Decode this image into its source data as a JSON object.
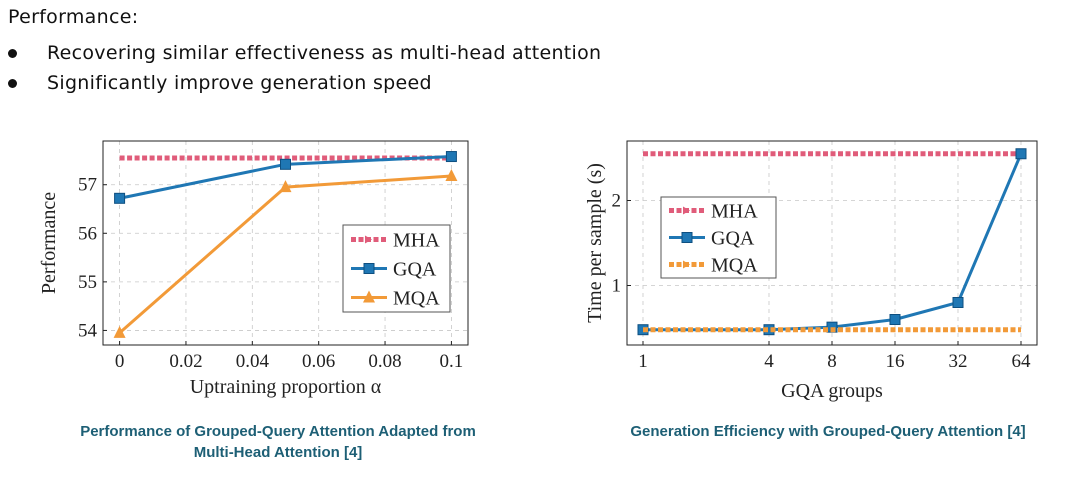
{
  "heading": "Performance:",
  "bullets": [
    "Recovering similar effectiveness as multi-head attention",
    "Significantly improve generation speed"
  ],
  "captions": [
    "Performance of Grouped-Query Attention Adapted from Multi-Head Attention [4]",
    "Generation Efficiency with Grouped-Query Attention [4]"
  ],
  "colors": {
    "MHA": "#e05c7a",
    "GQA": "#1f77b4",
    "MQA": "#f29a38",
    "caption": "#1d5f75"
  },
  "chart_data": [
    {
      "type": "line",
      "xlabel": "Uptraining proportion α",
      "ylabel": "Performance",
      "xlim": [
        -0.005,
        0.105
      ],
      "ylim": [
        53.7,
        57.9
      ],
      "xticks": [
        0,
        0.02,
        0.04,
        0.06,
        0.08,
        0.1
      ],
      "xtick_labels": [
        "0",
        "0.02",
        "0.04",
        "0.06",
        "0.08",
        "0.1"
      ],
      "yticks": [
        54,
        55,
        56,
        57
      ],
      "grid": true,
      "legend": "center-right",
      "series": [
        {
          "name": "MHA",
          "x": [
            0,
            0.05,
            0.1
          ],
          "y": [
            57.55,
            57.55,
            57.55
          ],
          "style": "dotted",
          "marker": "none"
        },
        {
          "name": "GQA",
          "x": [
            0,
            0.05,
            0.1
          ],
          "y": [
            56.72,
            57.42,
            57.58
          ],
          "style": "solid",
          "marker": "square"
        },
        {
          "name": "MQA",
          "x": [
            0,
            0.05,
            0.1
          ],
          "y": [
            53.95,
            56.95,
            57.18
          ],
          "style": "solid",
          "marker": "triangle"
        }
      ]
    },
    {
      "type": "line",
      "xlabel": "GQA groups",
      "ylabel": "Time per sample (s)",
      "xscale": "log2",
      "xlim": [
        1,
        64
      ],
      "ylim": [
        0.3,
        2.7
      ],
      "xticks": [
        1,
        4,
        8,
        16,
        32,
        64
      ],
      "xtick_labels": [
        "1",
        "4",
        "8",
        "16",
        "32",
        "64"
      ],
      "yticks": [
        1,
        2
      ],
      "grid": true,
      "legend": "top-left",
      "series": [
        {
          "name": "MHA",
          "x": [
            1,
            64
          ],
          "y": [
            2.55,
            2.55
          ],
          "style": "dotted",
          "marker": "none"
        },
        {
          "name": "GQA",
          "x": [
            1,
            4,
            8,
            16,
            32,
            64
          ],
          "y": [
            0.48,
            0.48,
            0.51,
            0.6,
            0.8,
            2.55
          ],
          "style": "solid",
          "marker": "square"
        },
        {
          "name": "MQA",
          "x": [
            1,
            64
          ],
          "y": [
            0.48,
            0.48
          ],
          "style": "dotted",
          "marker": "none"
        }
      ]
    }
  ]
}
